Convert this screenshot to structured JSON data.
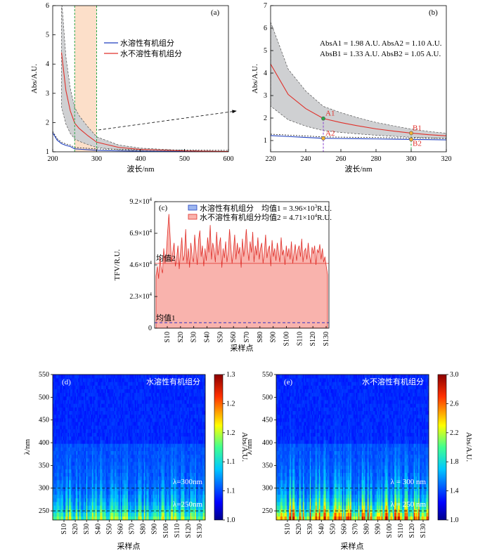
{
  "colors": {
    "soluble": "#1f3fbf",
    "insoluble": "#e0302a",
    "band": "#cfd0d2",
    "highlight": "#fbd9c0",
    "guide_green": "#2aa84a",
    "guide_purple": "#8a3fd0",
    "heatmap_low": "#00008b",
    "heatmap_high": "#8b0000",
    "tfv_fill": "#f9b3ad"
  },
  "panels": {
    "a": {
      "tag": "(a)",
      "xlabel": "波长/nm",
      "ylabel": "Abs/A.U.",
      "legend": [
        "水溶性有机组分",
        "水不溶性有机组分"
      ]
    },
    "b": {
      "tag": "(b)",
      "xlabel": "波长/nm",
      "ylabel": "Abs/A.U.",
      "note1": "AbsA1 = 1.98 A.U.  AbsA2 = 1.10 A.U.",
      "note2": "AbsB1 = 1.33 A.U.  AbsB2 = 1.05 A.U.",
      "markers": [
        "A1",
        "A2",
        "B1",
        "B2"
      ]
    },
    "c": {
      "tag": "(c)",
      "xlabel": "采样点",
      "ylabel": "TFV/R.U.",
      "yticks": [
        "0",
        "2.3×10",
        "4.6×10",
        "6.9×10",
        "9.2×10"
      ],
      "ytick_exp": "4",
      "legend": [
        "水溶性有机组分",
        "水不溶性有机组分"
      ],
      "mean1_text": "均值1 = 3.96×10",
      "mean1_exp": "3",
      "mean1_unit": "R.U.",
      "mean2_text": "均值2 = 4.71×10",
      "mean2_exp": "4",
      "mean2_unit": "R.U.",
      "mean1_label": "均值1",
      "mean2_label": "均值2",
      "xticks": [
        "S10",
        "S20",
        "S30",
        "S40",
        "S50",
        "S60",
        "S70",
        "S80",
        "S90",
        "S100",
        "S110",
        "S120",
        "S130"
      ]
    },
    "d": {
      "tag": "(d)",
      "title": "水溶性有机组分",
      "xlabel": "采样点",
      "ylabel": "λ/nm",
      "cbar_label": "Abs/A.U.",
      "cbar_ticks": [
        "1.0",
        "1.1",
        "1.1",
        "1.2",
        "1.2",
        "1.3"
      ],
      "line1": "λ=300nm",
      "line2": "λ=250nm",
      "xticks": [
        "S10",
        "S20",
        "S30",
        "S40",
        "S50",
        "S60",
        "S70",
        "S80",
        "S90",
        "S100",
        "S110",
        "S120",
        "S130"
      ]
    },
    "e": {
      "tag": "(e)",
      "title": "水不溶性有机组分",
      "xlabel": "采样点",
      "ylabel": "λ/nm",
      "cbar_label": "Abs/A.U.",
      "cbar_ticks": [
        "1.0",
        "1.4",
        "1.8",
        "2.2",
        "2.6",
        "3.0"
      ],
      "line1": "λ = 300 nm",
      "line2": "λ = 250 nm",
      "xticks": [
        "S10",
        "S20",
        "S30",
        "S40",
        "S50",
        "S60",
        "S70",
        "S80",
        "S90",
        "S100",
        "S110",
        "S120",
        "S130"
      ]
    }
  },
  "chart_data": [
    {
      "panel": "a",
      "type": "line",
      "xlim": [
        200,
        600
      ],
      "ylim": [
        1,
        6
      ],
      "xticks": [
        200,
        300,
        400,
        500,
        600
      ],
      "yticks": [
        1,
        2,
        3,
        4,
        5,
        6
      ],
      "highlight_range": [
        250,
        300
      ],
      "x": [
        200,
        210,
        220,
        230,
        240,
        250,
        260,
        280,
        300,
        350,
        400,
        500,
        600
      ],
      "series": [
        {
          "name": "水溶性有机组分",
          "values": [
            1.65,
            1.4,
            1.28,
            1.22,
            1.18,
            1.1,
            1.09,
            1.07,
            1.05,
            1.03,
            1.02,
            1.01,
            1.0
          ]
        },
        {
          "name": "水不溶性有机组分",
          "values": [
            null,
            null,
            4.4,
            3.1,
            2.4,
            1.98,
            1.8,
            1.55,
            1.33,
            1.15,
            1.08,
            1.03,
            1.01
          ]
        }
      ]
    },
    {
      "panel": "b",
      "type": "line",
      "xlim": [
        220,
        320
      ],
      "ylim": [
        0.5,
        7
      ],
      "xticks": [
        220,
        240,
        260,
        280,
        300,
        320
      ],
      "yticks": [
        1,
        2,
        3,
        4,
        5,
        6,
        7
      ],
      "x": [
        220,
        230,
        240,
        250,
        260,
        270,
        280,
        290,
        300,
        310,
        320
      ],
      "series": [
        {
          "name": "水溶性有机组分",
          "values": [
            1.22,
            1.18,
            1.14,
            1.1,
            1.09,
            1.08,
            1.07,
            1.06,
            1.05,
            1.04,
            1.03
          ]
        },
        {
          "name": "水不溶性有机组分",
          "values": [
            4.4,
            3.05,
            2.42,
            1.98,
            1.8,
            1.65,
            1.52,
            1.42,
            1.33,
            1.26,
            1.21
          ]
        }
      ],
      "points": [
        {
          "label": "A1",
          "x": 250,
          "y": 1.98
        },
        {
          "label": "A2",
          "x": 250,
          "y": 1.1
        },
        {
          "label": "B1",
          "x": 300,
          "y": 1.33
        },
        {
          "label": "B2",
          "x": 300,
          "y": 1.05
        }
      ]
    },
    {
      "panel": "c",
      "type": "area",
      "ylim": [
        0,
        92000
      ],
      "yticks": [
        0,
        23000,
        46000,
        69000,
        92000
      ],
      "mean1": 3960,
      "mean2": 47100,
      "values": [
        38000,
        45000,
        36000,
        52000,
        44000,
        40000,
        58000,
        47000,
        55000,
        70000,
        83000,
        65000,
        48000,
        55000,
        62000,
        45000,
        51000,
        60000,
        43000,
        56000,
        66000,
        49000,
        53000,
        72000,
        47000,
        58000,
        44000,
        62000,
        52000,
        48000,
        68000,
        56000,
        46000,
        64000,
        71000,
        52000,
        60000,
        45000,
        58000,
        49000,
        66000,
        55000,
        75000,
        50000,
        62000,
        57000,
        48000,
        70000,
        53000,
        60000,
        66000,
        44000,
        58000,
        51000,
        63000,
        48000,
        55000,
        72000,
        60000,
        47000,
        56000,
        68000,
        50000,
        62000,
        54000,
        59000,
        44000,
        65000,
        52000,
        60000,
        72000,
        57000,
        49000,
        63000,
        55000,
        70000,
        48000,
        60000,
        53000,
        66000,
        50000,
        58000,
        62000,
        47000,
        55000,
        68000,
        51000,
        57000,
        60000,
        45000,
        64000,
        52000,
        58000,
        49000,
        62000,
        55000,
        48000,
        66000,
        53000,
        57000,
        46000,
        60000,
        52000,
        58000,
        50000,
        63000,
        47000,
        55000,
        61000,
        49000,
        57000,
        60000,
        52000,
        65000,
        48000,
        56000,
        58000,
        50000,
        62000,
        53000,
        47000,
        59000,
        54000,
        60000,
        46000,
        57000,
        55000,
        61000,
        50000,
        58000,
        48000,
        52000,
        45000,
        39000
      ]
    },
    {
      "panel": "d",
      "type": "heatmap",
      "xlabel": "采样点",
      "ylabel": "λ/nm",
      "ylim": [
        230,
        550
      ],
      "yticks": [
        250,
        300,
        350,
        400,
        450,
        500,
        550
      ],
      "color_range": [
        1.0,
        1.3
      ],
      "guide_lines": [
        300,
        250
      ]
    },
    {
      "panel": "e",
      "type": "heatmap",
      "xlabel": "采样点",
      "ylabel": "λ/nm",
      "ylim": [
        230,
        550
      ],
      "yticks": [
        250,
        300,
        350,
        400,
        450,
        500,
        550
      ],
      "color_range": [
        1.0,
        3.0
      ],
      "guide_lines": [
        300,
        250
      ]
    }
  ]
}
